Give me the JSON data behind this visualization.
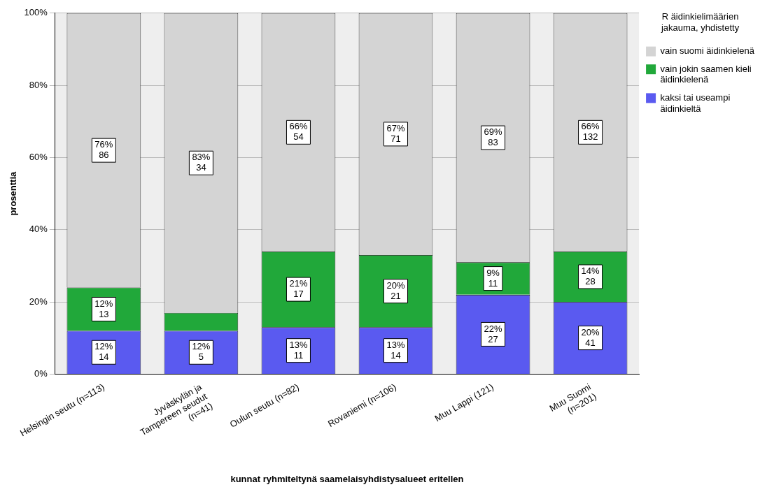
{
  "chart_data": {
    "type": "bar",
    "stacked": true,
    "categories": [
      "Helsingin seutu (n=113)",
      "Jyväskylän ja\nTampereen seudut\n(n=41)",
      "Oulun seutu (n=82)",
      "Rovaniemi (n=106)",
      "Muu Lappi (121)",
      "Muu Suomi\n(n=201)"
    ],
    "series": [
      {
        "name": "kaksi tai useampi\näidinkieltä",
        "color": "#5a5af0",
        "values": [
          12,
          12,
          13,
          13,
          22,
          20
        ],
        "value_labels": [
          "12%\n14",
          "12%\n5",
          "13%\n11",
          "13%\n14",
          "22%\n27",
          "20%\n41"
        ]
      },
      {
        "name": "vain jokin saamen kieli\näidinkielenä",
        "color": "#21a83a",
        "values": [
          12,
          5,
          21,
          20,
          9,
          14
        ],
        "value_labels": [
          "12%\n13",
          null,
          "21%\n17",
          "20%\n21",
          "9%\n11",
          "14%\n28"
        ]
      },
      {
        "name": "vain suomi äidinkielenä",
        "color": "#d4d4d4",
        "values": [
          76,
          83,
          66,
          67,
          69,
          66
        ],
        "value_labels": [
          "76%\n86",
          "83%\n34",
          "66%\n54",
          "67%\n71",
          "69%\n83",
          "66%\n132"
        ]
      }
    ],
    "xlabel": "kunnat ryhmiteltynä saamelaisyhdistysalueet eritellen",
    "ylabel": "prosenttia",
    "legend_title": "R äidinkielimäärien\njakauma, yhdistetty",
    "legend": "right",
    "ylim": [
      0,
      100
    ],
    "yticks": [
      {
        "value": 0,
        "label": "0%"
      },
      {
        "value": 20,
        "label": "20%"
      },
      {
        "value": 40,
        "label": "40%"
      },
      {
        "value": 60,
        "label": "60%"
      },
      {
        "value": 80,
        "label": "80%"
      },
      {
        "value": 100,
        "label": "100%"
      }
    ],
    "grid": "y"
  }
}
